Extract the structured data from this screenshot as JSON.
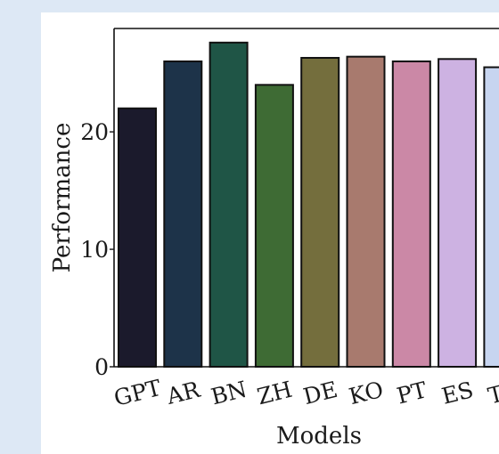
{
  "chart_data": {
    "type": "bar",
    "categories": [
      "GPT",
      "AR",
      "BN",
      "ZH",
      "DE",
      "KO",
      "PT",
      "ES",
      "TT"
    ],
    "values": [
      22.0,
      26.0,
      27.6,
      24.0,
      26.3,
      26.4,
      26.0,
      26.2,
      25.5
    ],
    "title": "",
    "xlabel": "Models",
    "ylabel": "Performance",
    "yticks": [
      0,
      10,
      20
    ],
    "ylim": [
      0,
      28.8
    ],
    "grid": false,
    "legend": "none",
    "colors": [
      "#1b1a2c",
      "#1d3349",
      "#1f5546",
      "#3e6b34",
      "#746e3d",
      "#a87a6e",
      "#cb88a6",
      "#cdb2e2",
      "#c7d5f0"
    ],
    "edge_color": "#111111"
  }
}
